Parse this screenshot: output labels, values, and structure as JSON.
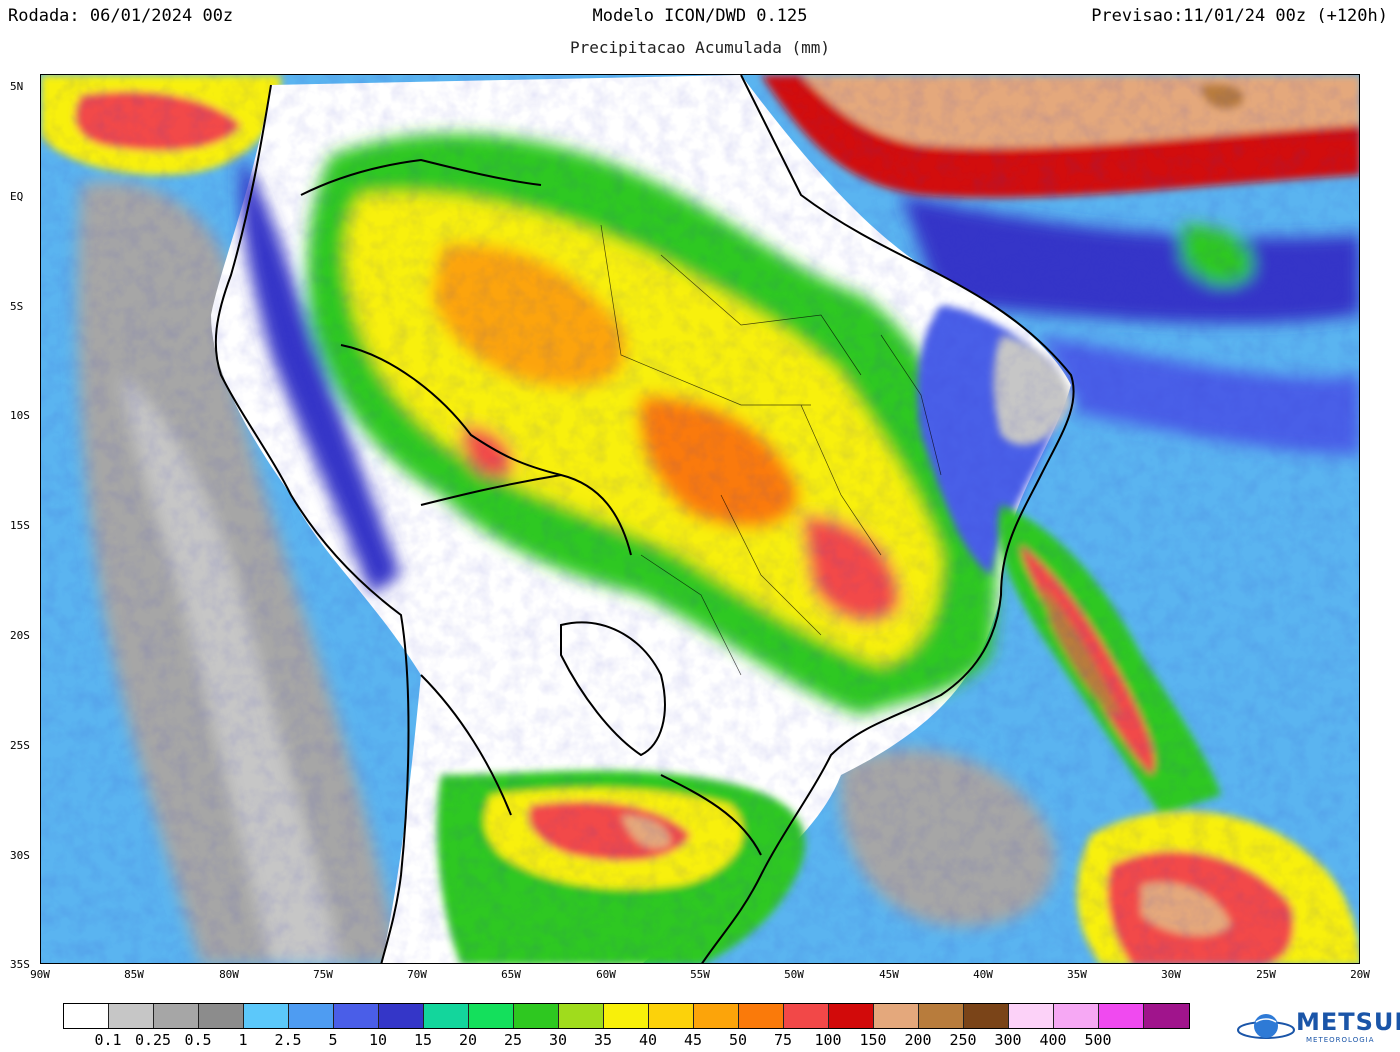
{
  "header": {
    "run": "Rodada: 06/01/2024 00z",
    "model": "Modelo ICON/DWD 0.125",
    "forecast": "Previsao:11/01/24 00z (+120h)",
    "subtitle": "Precipitacao Acumulada (mm)"
  },
  "map": {
    "lat_labels": [
      "5N",
      "EQ",
      "5S",
      "10S",
      "15S",
      "20S",
      "25S",
      "30S",
      "35S"
    ],
    "lon_labels": [
      "90W",
      "85W",
      "80W",
      "75W",
      "70W",
      "65W",
      "60W",
      "55W",
      "50W",
      "45W",
      "40W",
      "35W",
      "30W",
      "25W",
      "20W"
    ],
    "region": "South America",
    "extent": {
      "lon_min": -90,
      "lon_max": -20,
      "lat_min": -35,
      "lat_max": 5
    },
    "ocean_background": "#5ab4f0",
    "boundary_color": "#000000"
  },
  "legend": {
    "colors": [
      "#ffffff",
      "#c6c6c6",
      "#a6a6a6",
      "#8c8c8c",
      "#5cc8fa",
      "#4e9cf2",
      "#4a5ee8",
      "#3436c8",
      "#13d69c",
      "#14e05c",
      "#2ec820",
      "#a0dc1c",
      "#f8f00a",
      "#fcd20a",
      "#fca40a",
      "#fa7a0a",
      "#f24848",
      "#d20a0a",
      "#e4a87c",
      "#b87c3c",
      "#7a4418",
      "#fcd2f8",
      "#f6a8f4",
      "#f04af0",
      "#a0148c"
    ],
    "labels": [
      "0.1",
      "0.25",
      "0.5",
      "1",
      "2.5",
      "5",
      "10",
      "15",
      "20",
      "25",
      "30",
      "35",
      "40",
      "45",
      "50",
      "75",
      "100",
      "150",
      "200",
      "250",
      "300",
      "400",
      "500"
    ]
  },
  "logo": {
    "text": "METSUL",
    "sub": "METEOROLOGIA",
    "color": "#1a55a8"
  }
}
